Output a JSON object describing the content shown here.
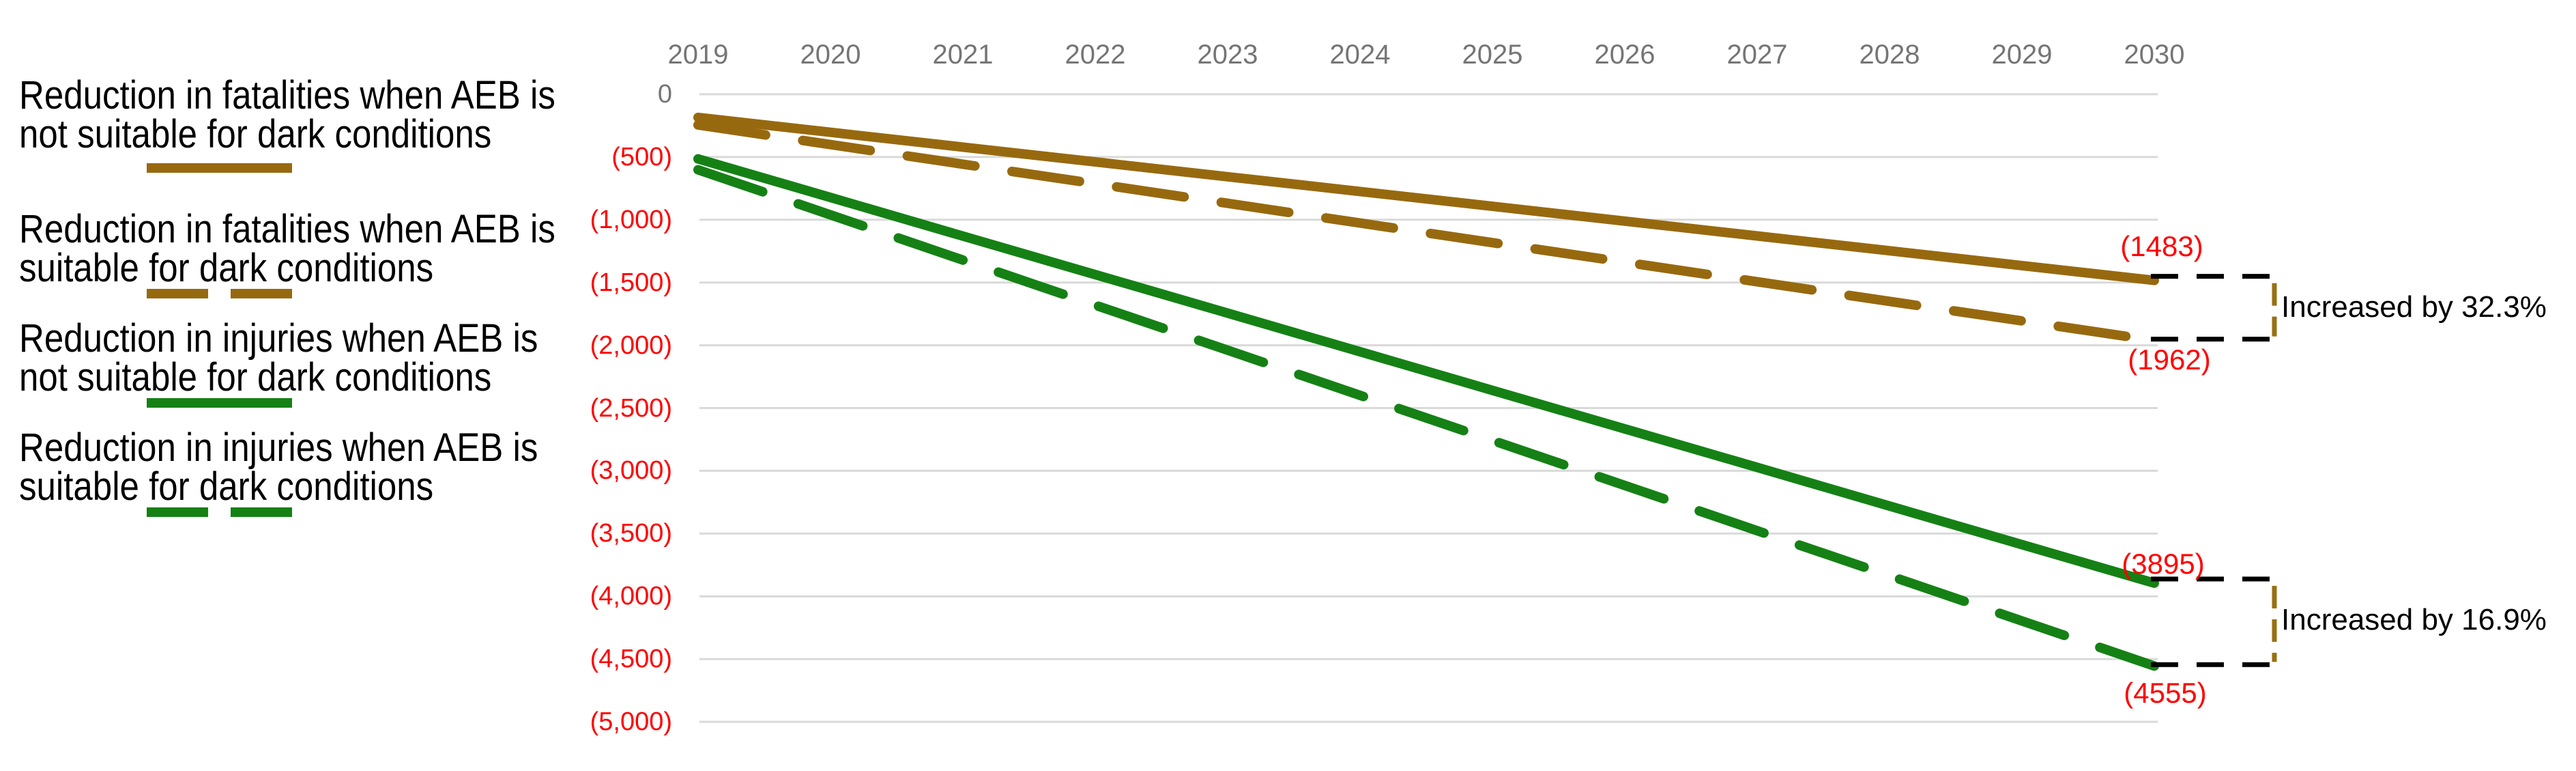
{
  "colors": {
    "fatalities_line": "#97690F",
    "injuries_line": "#158115",
    "negative_label_red": "#FF0000",
    "axis_label_gray": "#757575",
    "gridline": "#D9D9D9",
    "annotation_text": "#000000",
    "bracket_black": "#000000",
    "bracket_gold": "#9A6F13"
  },
  "chart_data": {
    "type": "line",
    "title": "",
    "x": [
      2019,
      2020,
      2021,
      2022,
      2023,
      2024,
      2025,
      2026,
      2027,
      2028,
      2029,
      2030
    ],
    "x_axis_position": "top",
    "ylim": [
      -5000,
      0
    ],
    "ytick_values": [
      0,
      -500,
      -1000,
      -1500,
      -2000,
      -2500,
      -3000,
      -3500,
      -4000,
      -4500,
      -5000
    ],
    "ytick_labels": [
      "0",
      "(500)",
      "(1,000)",
      "(1,500)",
      "(2,000)",
      "(2,500)",
      "(3,000)",
      "(3,500)",
      "(4,000)",
      "(4,500)",
      "(5,000)"
    ],
    "grid": true,
    "legend_position": "left",
    "series": [
      {
        "id": "fatalities-not-suitable",
        "name": "Reduction in fatalities when AEB is\nnot suitable for dark conditions",
        "color": "#97690F",
        "dashed": false,
        "values": [
          -185,
          -303,
          -421,
          -539,
          -657,
          -775,
          -893,
          -1011,
          -1129,
          -1247,
          -1365,
          -1483
        ],
        "end_label": "(1483)"
      },
      {
        "id": "fatalities-suitable",
        "name": "Reduction in fatalities when AEB is\nsuitable for dark conditions",
        "color": "#97690F",
        "dashed": true,
        "values": [
          -245,
          -401,
          -557,
          -713,
          -869,
          -1026,
          -1182,
          -1338,
          -1494,
          -1650,
          -1806,
          -1962
        ],
        "end_label": "(1962)"
      },
      {
        "id": "injuries-not-suitable",
        "name": "Reduction in injuries when AEB is\nnot suitable for dark conditions",
        "color": "#158115",
        "dashed": false,
        "values": [
          -515,
          -822,
          -1130,
          -1437,
          -1744,
          -2051,
          -2359,
          -2666,
          -2973,
          -3281,
          -3588,
          -3895
        ],
        "end_label": "(3895)"
      },
      {
        "id": "injuries-suitable",
        "name": "Reduction in injuries when AEB is\nsuitable for dark conditions",
        "color": "#158115",
        "dashed": true,
        "values": [
          -602,
          -961,
          -1321,
          -1680,
          -2039,
          -2399,
          -2758,
          -3117,
          -3477,
          -3836,
          -4196,
          -4555
        ],
        "end_label": "(4555)"
      }
    ],
    "annotations": [
      {
        "text": "Increased by 32.3%",
        "between_labels": [
          "(1483)",
          "(1962)"
        ]
      },
      {
        "text": "Increased by 16.9%",
        "between_labels": [
          "(3895)",
          "(4555)"
        ]
      }
    ]
  }
}
